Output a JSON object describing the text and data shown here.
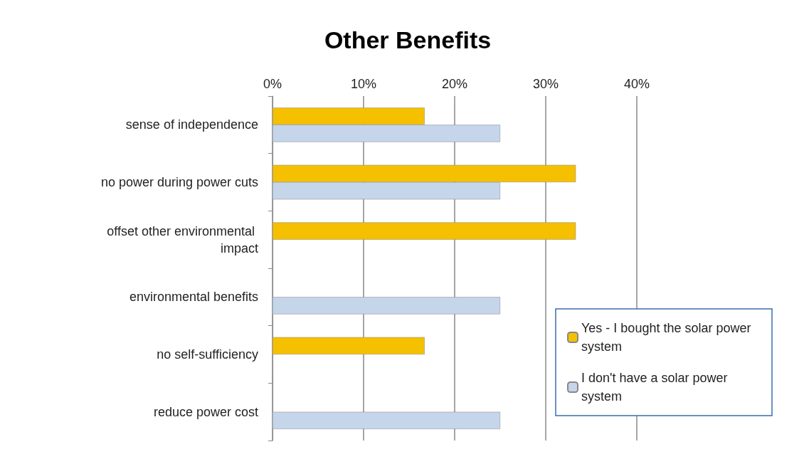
{
  "chart_data": {
    "type": "bar",
    "orientation": "horizontal",
    "title": "Other Benefits",
    "categories": [
      "sense of independence",
      "no power during power cuts",
      "offset other environmental impact",
      "environmental benefits",
      "no self-sufficiency",
      "reduce power cost"
    ],
    "series": [
      {
        "name": "Yes - I bought the solar power system",
        "color": "#f5c000",
        "values": [
          16.7,
          33.3,
          33.3,
          null,
          16.7,
          null
        ]
      },
      {
        "name": "I don't have a solar power system",
        "color": "#c5d5ea",
        "values": [
          25,
          25,
          null,
          25,
          null,
          25
        ]
      }
    ],
    "xlim": [
      0,
      40
    ],
    "xticks": [
      {
        "value": 0,
        "label": "0%"
      },
      {
        "value": 10,
        "label": "10%"
      },
      {
        "value": 20,
        "label": "20%"
      },
      {
        "value": 30,
        "label": "30%"
      },
      {
        "value": 40,
        "label": "40%"
      }
    ],
    "grid": "x",
    "legend": "bottom right"
  }
}
